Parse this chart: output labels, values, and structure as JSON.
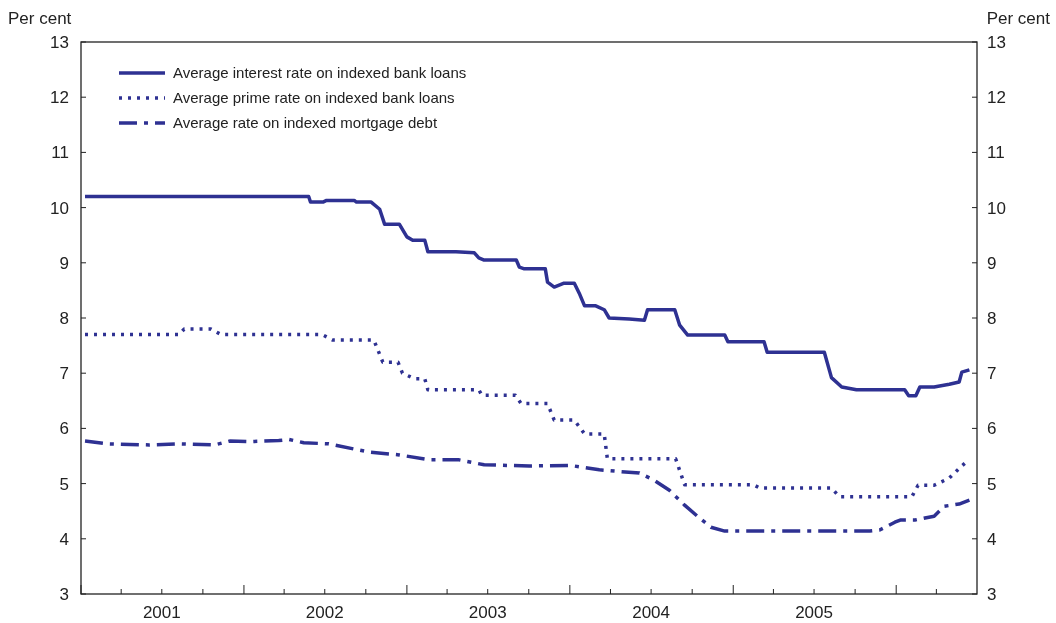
{
  "chart_data": {
    "type": "line",
    "ylabel": "Per cent",
    "y2label": "Per cent",
    "xlim": [
      "2001-01-01",
      "2006-07-01"
    ],
    "xticks": [
      {
        "value": "2001-01-01",
        "label": null
      },
      {
        "value": "2001-04-01",
        "label": null
      },
      {
        "value": "2001-07-01",
        "label": "2001"
      },
      {
        "value": "2001-10-01",
        "label": null
      },
      {
        "value": "2002-01-01",
        "label": null
      },
      {
        "value": "2002-04-01",
        "label": null
      },
      {
        "value": "2002-07-01",
        "label": "2002"
      },
      {
        "value": "2002-10-01",
        "label": null
      },
      {
        "value": "2003-01-01",
        "label": null
      },
      {
        "value": "2003-04-01",
        "label": null
      },
      {
        "value": "2003-07-01",
        "label": "2003"
      },
      {
        "value": "2003-10-01",
        "label": null
      },
      {
        "value": "2004-01-01",
        "label": null
      },
      {
        "value": "2004-04-01",
        "label": null
      },
      {
        "value": "2004-07-01",
        "label": "2004"
      },
      {
        "value": "2004-10-01",
        "label": null
      },
      {
        "value": "2005-01-01",
        "label": null
      },
      {
        "value": "2005-04-01",
        "label": null
      },
      {
        "value": "2005-07-01",
        "label": "2005"
      },
      {
        "value": "2005-10-01",
        "label": null
      },
      {
        "value": "2006-01-01",
        "label": null
      },
      {
        "value": "2006-04-01",
        "label": null
      }
    ],
    "ylim": [
      3,
      13
    ],
    "yticks": [
      3,
      4,
      5,
      6,
      7,
      8,
      9,
      10,
      11,
      12,
      13
    ],
    "y2lim": [
      3,
      13
    ],
    "y2ticks": [
      3,
      4,
      5,
      6,
      7,
      8,
      9,
      10,
      11,
      12,
      13
    ],
    "legend": "top left",
    "grid": false,
    "series": [
      {
        "name": "Average interest rate on indexed bank loans",
        "color": "#2e3192",
        "line_style": "solid",
        "x": [
          "2001-01-10",
          "2002-05-26",
          "2002-05-30",
          "2002-06-27",
          "2002-07-05",
          "2002-09-05",
          "2002-09-10",
          "2002-10-13",
          "2002-11-01",
          "2002-11-12",
          "2002-12-15",
          "2003-01-01",
          "2003-01-14",
          "2003-02-10",
          "2003-02-17",
          "2003-04-21",
          "2003-06-01",
          "2003-06-11",
          "2003-06-23",
          "2003-09-03",
          "2003-09-10",
          "2003-09-21",
          "2003-11-07",
          "2003-11-12",
          "2003-11-27",
          "2003-12-19",
          "2004-01-11",
          "2004-01-22",
          "2004-02-03",
          "2004-02-28",
          "2004-03-18",
          "2004-03-29",
          "2004-05-13",
          "2004-06-16",
          "2004-06-23",
          "2004-08-23",
          "2004-09-03",
          "2004-09-21",
          "2004-12-13",
          "2004-12-20",
          "2005-03-11",
          "2005-03-18",
          "2005-07-24",
          "2005-08-09",
          "2005-09-01",
          "2005-10-04",
          "2006-01-20",
          "2006-01-29",
          "2006-02-14",
          "2006-02-23",
          "2006-03-27",
          "2006-04-30",
          "2006-05-22",
          "2006-05-28",
          "2006-06-14"
        ],
        "values": [
          10.2,
          10.2,
          10.1,
          10.1,
          10.13,
          10.13,
          10.1,
          10.1,
          9.97,
          9.7,
          9.7,
          9.47,
          9.41,
          9.41,
          9.2,
          9.2,
          9.18,
          9.09,
          9.05,
          9.05,
          8.92,
          8.89,
          8.89,
          8.65,
          8.56,
          8.63,
          8.63,
          8.45,
          8.22,
          8.22,
          8.15,
          8.0,
          7.98,
          7.96,
          8.15,
          8.15,
          7.87,
          7.69,
          7.69,
          7.57,
          7.57,
          7.38,
          7.38,
          6.92,
          6.75,
          6.7,
          6.7,
          6.59,
          6.59,
          6.75,
          6.75,
          6.8,
          6.84,
          7.02,
          7.06
        ]
      },
      {
        "name": "Average prime rate on indexed bank loans",
        "color": "#2e3192",
        "line_style": "dotted",
        "x": [
          "2001-01-10",
          "2001-08-09",
          "2001-08-20",
          "2001-10-19",
          "2001-11-11",
          "2002-06-25",
          "2002-07-19",
          "2002-10-19",
          "2002-11-08",
          "2002-12-12",
          "2002-12-22",
          "2003-01-18",
          "2003-02-10",
          "2003-02-17",
          "2003-06-11",
          "2003-06-18",
          "2003-09-01",
          "2003-09-14",
          "2003-11-12",
          "2003-11-27",
          "2004-01-11",
          "2004-02-03",
          "2004-03-18",
          "2004-03-25",
          "2004-08-25",
          "2004-09-14",
          "2005-02-15",
          "2005-03-01",
          "2005-08-09",
          "2005-08-27",
          "2006-02-05",
          "2006-02-19",
          "2006-03-27",
          "2006-04-30",
          "2006-05-28",
          "2006-06-07"
        ],
        "values": [
          7.7,
          7.7,
          7.8,
          7.8,
          7.7,
          7.7,
          7.6,
          7.6,
          7.2,
          7.2,
          7.0,
          6.9,
          6.9,
          6.7,
          6.7,
          6.6,
          6.6,
          6.45,
          6.45,
          6.15,
          6.15,
          5.9,
          5.9,
          5.45,
          5.45,
          4.98,
          4.98,
          4.92,
          4.92,
          4.76,
          4.76,
          4.97,
          4.97,
          5.1,
          5.32,
          5.39
        ]
      },
      {
        "name": "Average rate on indexed mortgage debt",
        "color": "#2e3192",
        "line_style": "dashdot",
        "x": [
          "2001-01-10",
          "2001-03-05",
          "2001-06-03",
          "2001-08-09",
          "2001-10-27",
          "2001-11-30",
          "2002-01-14",
          "2002-03-20",
          "2002-04-12",
          "2002-05-15",
          "2002-07-10",
          "2002-10-09",
          "2002-12-15",
          "2003-02-21",
          "2003-04-28",
          "2003-06-23",
          "2003-10-02",
          "2004-01-01",
          "2004-03-07",
          "2004-04-21",
          "2004-06-05",
          "2004-07-08",
          "2004-08-11",
          "2004-09-14",
          "2004-10-17",
          "2004-11-12",
          "2004-12-13",
          "2005-11-03",
          "2005-11-25",
          "2005-12-29",
          "2006-01-10",
          "2006-02-12",
          "2006-03-27",
          "2006-04-19",
          "2006-05-22",
          "2006-06-14"
        ],
        "values": [
          5.77,
          5.72,
          5.7,
          5.72,
          5.7,
          5.77,
          5.76,
          5.78,
          5.8,
          5.74,
          5.72,
          5.57,
          5.52,
          5.43,
          5.43,
          5.34,
          5.32,
          5.33,
          5.25,
          5.22,
          5.19,
          5.06,
          4.88,
          4.61,
          4.38,
          4.21,
          4.14,
          4.14,
          4.16,
          4.3,
          4.34,
          4.34,
          4.41,
          4.59,
          4.63,
          4.7
        ]
      }
    ]
  }
}
